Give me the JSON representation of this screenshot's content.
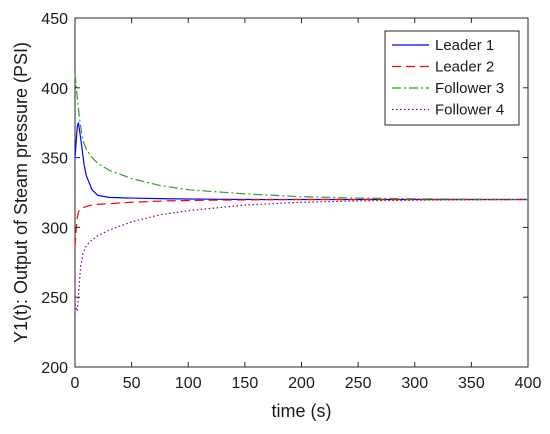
{
  "chart_data": {
    "type": "line",
    "xlabel": "time (s)",
    "ylabel": "Y1(t): Output of Steam pressure (PSI)",
    "xlim": [
      0,
      400
    ],
    "ylim": [
      200,
      450
    ],
    "xticks": [
      0,
      50,
      100,
      150,
      200,
      250,
      300,
      350,
      400
    ],
    "yticks": [
      200,
      250,
      300,
      350,
      400,
      450
    ],
    "grid": false,
    "legend_position": "top-right",
    "series": [
      {
        "name": "Leader 1",
        "color": "#0000ff",
        "dash": "solid",
        "x": [
          0,
          2,
          3,
          5,
          8,
          10,
          15,
          20,
          30,
          50,
          80,
          120,
          160,
          200,
          250,
          300,
          350,
          400
        ],
        "y": [
          350,
          372,
          375,
          364,
          345,
          337,
          327,
          323,
          321.5,
          321,
          320.5,
          320.2,
          320,
          320,
          320,
          320,
          320,
          320
        ]
      },
      {
        "name": "Leader 2",
        "color": "#ff0000",
        "dash": "dashed",
        "x": [
          0,
          1,
          2,
          3,
          5,
          8,
          10,
          15,
          20,
          30,
          50,
          80,
          120,
          160,
          200,
          250,
          300,
          350,
          400
        ],
        "y": [
          286,
          298,
          307,
          311,
          313.5,
          314.5,
          315,
          316,
          316.5,
          317,
          318,
          319,
          319.5,
          319.8,
          320,
          320,
          320,
          320,
          320
        ]
      },
      {
        "name": "Follower 3",
        "color": "#33a02c",
        "dash": "dashdot",
        "x": [
          0,
          2,
          4,
          6,
          8,
          10,
          15,
          20,
          30,
          40,
          50,
          75,
          100,
          150,
          200,
          250,
          300,
          350,
          400
        ],
        "y": [
          410,
          393,
          378,
          367,
          360,
          356,
          350,
          346,
          341,
          338,
          335,
          330,
          327,
          324,
          322,
          321,
          320.5,
          320.2,
          320
        ]
      },
      {
        "name": "Follower 4",
        "color": "#800080",
        "dash": "dotted",
        "x": [
          0,
          1,
          2,
          3,
          4,
          5,
          7,
          10,
          15,
          20,
          30,
          50,
          75,
          100,
          150,
          200,
          250,
          300,
          350,
          400
        ],
        "y": [
          245,
          242,
          240,
          250,
          262,
          272,
          281,
          287,
          291,
          294,
          298,
          304,
          309,
          312,
          316,
          318,
          319,
          319.5,
          319.8,
          320
        ]
      }
    ]
  }
}
